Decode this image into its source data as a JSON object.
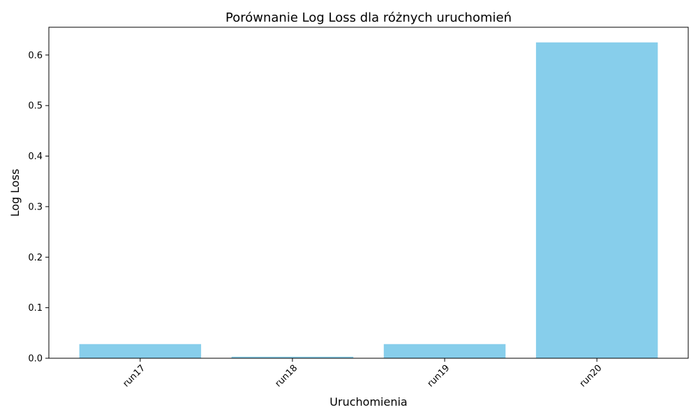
{
  "chart_data": {
    "type": "bar",
    "title": "Porównanie Log Loss dla różnych uruchomień",
    "xlabel": "Uruchomienia",
    "ylabel": "Log Loss",
    "categories": [
      "run17",
      "run18",
      "run19",
      "run20"
    ],
    "values": [
      0.028,
      0.003,
      0.028,
      0.625
    ],
    "ylim": [
      0,
      0.655
    ],
    "yticks": [
      0.0,
      0.1,
      0.2,
      0.3,
      0.4,
      0.5,
      0.6
    ],
    "ytick_labels": [
      "0.0",
      "0.1",
      "0.2",
      "0.3",
      "0.4",
      "0.5",
      "0.6"
    ],
    "bar_color": "#87ceeb",
    "grid": false,
    "xtick_rotation_deg": 45
  }
}
